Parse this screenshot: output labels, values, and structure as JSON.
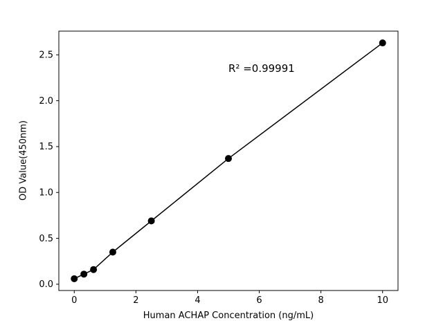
{
  "chart_data": {
    "type": "scatter",
    "title": "",
    "xlabel": "Human ACHAP Concentration (ng/mL)",
    "ylabel": "OD Value(450nm)",
    "annotation": "R² =0.99991",
    "x": [
      0,
      0.3125,
      0.625,
      1.25,
      2.5,
      5,
      10
    ],
    "y": [
      0.06,
      0.11,
      0.16,
      0.35,
      0.69,
      1.37,
      2.63
    ],
    "xticks": [
      0,
      2,
      4,
      6,
      8,
      10
    ],
    "xtick_labels": [
      "0",
      "2",
      "4",
      "6",
      "8",
      "10"
    ],
    "yticks": [
      0.0,
      0.5,
      1.0,
      1.5,
      2.0,
      2.5
    ],
    "ytick_labels": [
      "0.0",
      "0.5",
      "1.0",
      "1.5",
      "2.0",
      "2.5"
    ],
    "xlim": [
      -0.5,
      10.5
    ],
    "ylim": [
      -0.0685,
      2.7585
    ],
    "grid": false,
    "legend": null,
    "line_through_points": true,
    "colors": {
      "marker": "#000000",
      "line": "#000000",
      "axis": "#000000",
      "background": "#ffffff"
    }
  }
}
